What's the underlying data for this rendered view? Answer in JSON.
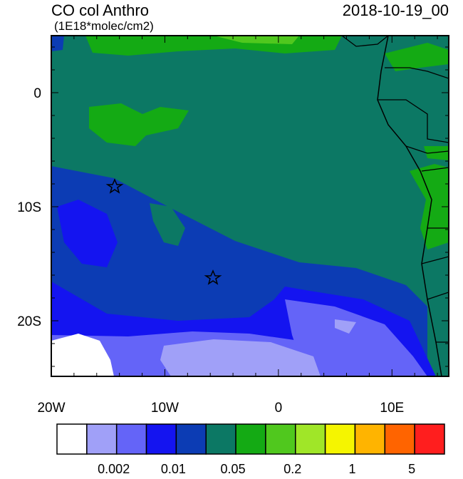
{
  "header": {
    "title": "CO col Anthro",
    "units": "(1E18*molec/cm2)",
    "time": "2018-10-19_00"
  },
  "x_axis": {
    "labels": [
      "20W",
      "10W",
      "0",
      "10E"
    ]
  },
  "y_axis": {
    "labels": [
      "0",
      "10S",
      "20S"
    ]
  },
  "colorbar": {
    "colors": [
      "#ffffff",
      "#a0a0f8",
      "#6464f8",
      "#1414f0",
      "#0c3cb4",
      "#0c7864",
      "#14aa14",
      "#50c81e",
      "#a0e628",
      "#f5f500",
      "#ffb400",
      "#ff6400",
      "#ff1e1e"
    ],
    "labels": [
      "0.002",
      "0.01",
      "0.05",
      "0.2",
      "1",
      "5"
    ]
  }
}
